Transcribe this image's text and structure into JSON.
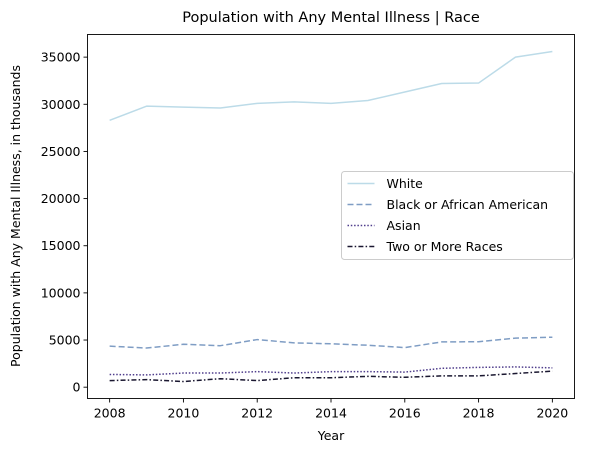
{
  "chart_data": {
    "type": "line",
    "title": "Population with Any Mental Illness | Race",
    "xlabel": "Year",
    "ylabel": "Population with Any Mental Illness, in thousands",
    "x": [
      2008,
      2009,
      2010,
      2011,
      2012,
      2013,
      2014,
      2015,
      2016,
      2017,
      2018,
      2019,
      2020
    ],
    "xlim": [
      2007.4,
      2020.6
    ],
    "ylim": [
      -1200,
      37400
    ],
    "xticks": [
      2008,
      2010,
      2012,
      2014,
      2016,
      2018,
      2020
    ],
    "yticks": [
      0,
      5000,
      10000,
      15000,
      20000,
      25000,
      30000,
      35000
    ],
    "grid": false,
    "legend_position": "center-right",
    "series": [
      {
        "name": "White",
        "color": "#bcdbe8",
        "dash": "solid",
        "values": [
          28300,
          29800,
          29700,
          29600,
          30100,
          30250,
          30100,
          30400,
          31300,
          32200,
          32250,
          35000,
          35600
        ]
      },
      {
        "name": "Black or African American",
        "color": "#7f9dc4",
        "dash": "dashed",
        "values": [
          4350,
          4150,
          4550,
          4400,
          5050,
          4700,
          4600,
          4450,
          4200,
          4800,
          4820,
          5200,
          5300
        ]
      },
      {
        "name": "Asian",
        "color": "#4f3d8c",
        "dash": "dotted",
        "values": [
          1350,
          1300,
          1500,
          1500,
          1650,
          1500,
          1650,
          1650,
          1600,
          2000,
          2100,
          2150,
          2050
        ]
      },
      {
        "name": "Two or More Races",
        "color": "#1a1730",
        "dash": "dashdot",
        "values": [
          700,
          800,
          600,
          900,
          700,
          1000,
          1000,
          1150,
          1050,
          1200,
          1200,
          1450,
          1700
        ]
      }
    ]
  }
}
